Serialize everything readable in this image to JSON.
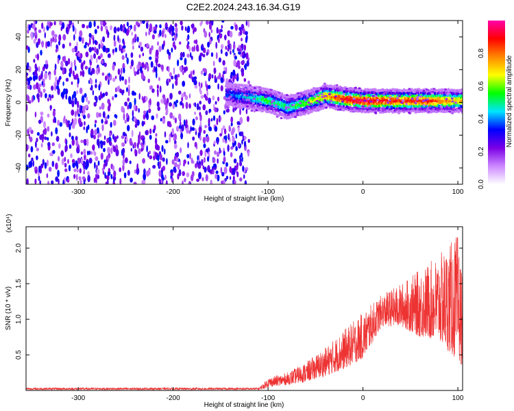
{
  "title": "C2E2.2024.243.16.34.G19",
  "chart_data": [
    {
      "type": "heatmap",
      "xlabel": "Height of straight line (km)",
      "ylabel": "Frequency (Hz)",
      "xlim": [
        -355,
        105
      ],
      "ylim": [
        -50,
        50
      ],
      "xticks": [
        -300,
        -200,
        -100,
        0,
        100
      ],
      "yticks": [
        -40,
        -20,
        0,
        20,
        40
      ],
      "colorbar": {
        "label": "Normalized spectral amplitude",
        "range": [
          0,
          1
        ],
        "ticks": [
          "0.0",
          "0.2",
          "0.4",
          "0.6",
          "0.8"
        ],
        "colormap": [
          "#ffffff",
          "#cc88ff",
          "#7a00e6",
          "#0000ff",
          "#00e5ff",
          "#00ff00",
          "#ffff00",
          "#ff8800",
          "#ff0000",
          "#ff00aa"
        ]
      },
      "noise_region": {
        "x_range": [
          -355,
          -120
        ],
        "y_range": [
          -50,
          50
        ],
        "amplitude": [
          0.1,
          0.35
        ]
      },
      "ridge": {
        "x": [
          -145,
          -120,
          -100,
          -80,
          -60,
          -40,
          -20,
          0,
          20,
          40,
          60,
          80,
          105
        ],
        "y": [
          5,
          3,
          1,
          -3,
          0,
          4,
          2,
          1,
          1,
          1,
          1,
          1,
          1
        ],
        "amplitude": [
          0.35,
          0.45,
          0.55,
          0.5,
          0.6,
          0.75,
          0.9,
          0.95,
          0.9,
          0.85,
          0.9,
          0.8,
          0.7
        ]
      }
    },
    {
      "type": "line",
      "xlabel": "Height of straight line (km)",
      "ylabel": "SNR (10 * v/v)",
      "multiplier": "(x10⁴)",
      "xlim": [
        -355,
        105
      ],
      "ylim": [
        0,
        2.3
      ],
      "xticks": [
        -300,
        -200,
        -100,
        0,
        100
      ],
      "yticks": [
        "0.5",
        "1.0",
        "1.5",
        "2.0"
      ],
      "ytick_values": [
        0.5,
        1.0,
        1.5,
        2.0
      ],
      "color": "#ee3333",
      "envelope": {
        "x": [
          -355,
          -110,
          -105,
          -100,
          -80,
          -60,
          -40,
          -20,
          0,
          20,
          40,
          60,
          80,
          100,
          105
        ],
        "low": [
          0.01,
          0.01,
          0.02,
          0.05,
          0.08,
          0.12,
          0.2,
          0.3,
          0.45,
          0.9,
          0.9,
          0.75,
          0.7,
          0.4,
          0.35
        ],
        "high": [
          0.04,
          0.04,
          0.1,
          0.18,
          0.25,
          0.4,
          0.6,
          0.85,
          1.1,
          1.35,
          1.5,
          1.7,
          1.9,
          2.2,
          1.6
        ]
      }
    }
  ]
}
